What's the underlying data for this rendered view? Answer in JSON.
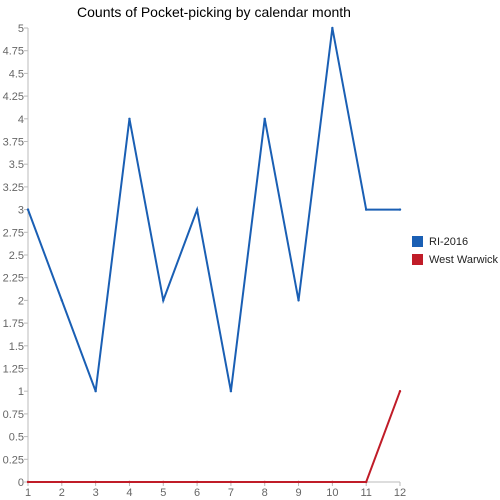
{
  "chart_data": {
    "type": "line",
    "title": "Counts of Pocket-picking by calendar month",
    "xlabel": "",
    "ylabel": "",
    "x": [
      1,
      2,
      3,
      4,
      5,
      6,
      7,
      8,
      9,
      10,
      11,
      12
    ],
    "xlim": [
      1,
      12
    ],
    "ylim": [
      0,
      5
    ],
    "y_ticks": [
      "0",
      "0.25",
      "0.5",
      "0.75",
      "1",
      "1.25",
      "1.5",
      "1.75",
      "2",
      "2.25",
      "2.5",
      "2.75",
      "3",
      "3.25",
      "3.5",
      "3.75",
      "4",
      "4.25",
      "4.5",
      "4.75",
      "5"
    ],
    "x_ticks": [
      "1",
      "2",
      "3",
      "4",
      "5",
      "6",
      "7",
      "8",
      "9",
      "10",
      "11",
      "12"
    ],
    "grid": false,
    "legend_position": "right",
    "series": [
      {
        "name": "RI-2016",
        "color": "#1a5fb4",
        "values": [
          3,
          2,
          1,
          4,
          2,
          3,
          1,
          4,
          2,
          5,
          3,
          3
        ]
      },
      {
        "name": "West Warwick",
        "color": "#c01c28",
        "values": [
          0,
          0,
          0,
          0,
          0,
          0,
          0,
          0,
          0,
          0,
          0,
          1
        ]
      }
    ]
  }
}
